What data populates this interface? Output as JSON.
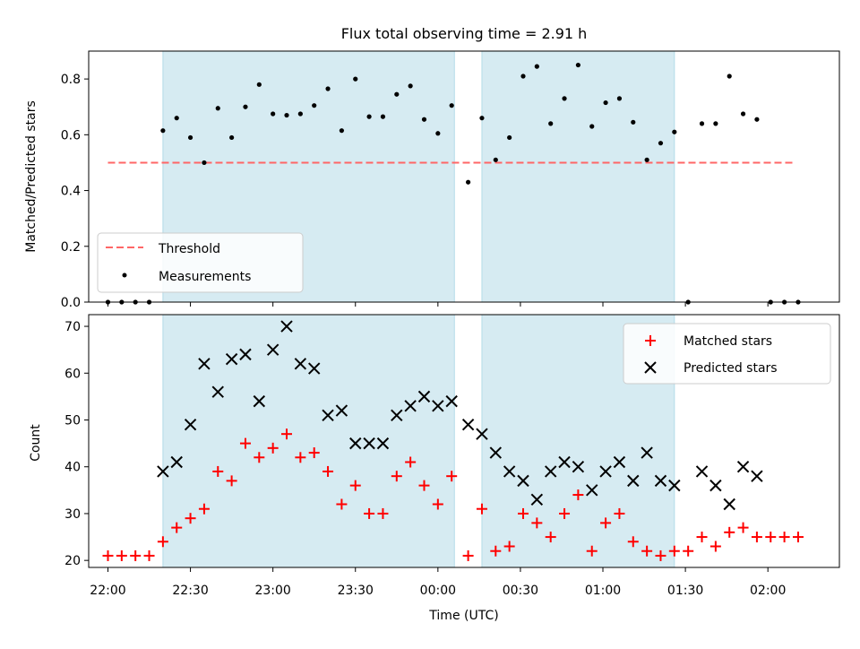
{
  "chart_data": [
    {
      "type": "scatter",
      "title": "Flux total observing time = 2.91 h",
      "xlabel": "",
      "ylabel": "Matched/Predicted stars",
      "xlim": [
        "21:53",
        "02:26"
      ],
      "ylim": [
        0,
        0.9
      ],
      "yticks": [
        0.0,
        0.2,
        0.4,
        0.6,
        0.8
      ],
      "ytick_labels": [
        "0.0",
        "0.2",
        "0.4",
        "0.6",
        "0.8"
      ],
      "shaded_regions": [
        [
          "22:20",
          "00:06"
        ],
        [
          "00:16",
          "01:26"
        ]
      ],
      "shade_color": "#add8e6",
      "legend_position": "lower-left",
      "threshold": {
        "name": "Threshold",
        "value": 0.5,
        "x_start": "22:00",
        "x_end": "02:10",
        "color": "#ff6666",
        "style": "dashed"
      },
      "series": [
        {
          "name": "Measurements",
          "color": "#000000",
          "marker": "dot",
          "x": [
            "22:00",
            "22:05",
            "22:10",
            "22:15",
            "22:20",
            "22:25",
            "22:30",
            "22:35",
            "22:40",
            "22:45",
            "22:50",
            "22:55",
            "23:00",
            "23:05",
            "23:10",
            "23:15",
            "23:20",
            "23:25",
            "23:30",
            "23:35",
            "23:40",
            "23:45",
            "23:50",
            "23:55",
            "00:00",
            "00:05",
            "00:11",
            "00:16",
            "00:21",
            "00:26",
            "00:31",
            "00:36",
            "00:41",
            "00:46",
            "00:51",
            "00:56",
            "01:01",
            "01:06",
            "01:11",
            "01:16",
            "01:21",
            "01:26",
            "01:31",
            "01:36",
            "01:41",
            "01:46",
            "01:51",
            "01:56",
            "02:01",
            "02:06",
            "02:11"
          ],
          "y": [
            0.0,
            0.0,
            0.0,
            0.0,
            0.615,
            0.66,
            0.59,
            0.5,
            0.695,
            0.59,
            0.7,
            0.78,
            0.675,
            0.67,
            0.675,
            0.705,
            0.765,
            0.615,
            0.8,
            0.665,
            0.665,
            0.745,
            0.775,
            0.655,
            0.605,
            0.705,
            0.43,
            0.66,
            0.51,
            0.59,
            0.81,
            0.845,
            0.64,
            0.73,
            0.85,
            0.63,
            0.715,
            0.73,
            0.645,
            0.51,
            0.57,
            0.61,
            0.0,
            0.64,
            0.64,
            0.81,
            0.675,
            0.655,
            0.0,
            0.0,
            0.0
          ]
        }
      ]
    },
    {
      "type": "scatter",
      "title": "",
      "xlabel": "Time (UTC)",
      "ylabel": "Count",
      "xlim": [
        "21:53",
        "02:26"
      ],
      "ylim": [
        18.5,
        72.5
      ],
      "yticks": [
        20,
        30,
        40,
        50,
        60,
        70
      ],
      "ytick_labels": [
        "20",
        "30",
        "40",
        "50",
        "60",
        "70"
      ],
      "xticks": [
        "22:00",
        "22:30",
        "23:00",
        "23:30",
        "00:00",
        "00:30",
        "01:00",
        "01:30",
        "02:00"
      ],
      "xtick_labels": [
        "22:00",
        "22:30",
        "23:00",
        "23:30",
        "00:00",
        "00:30",
        "01:00",
        "01:30",
        "02:00"
      ],
      "shaded_regions": [
        [
          "22:20",
          "00:06"
        ],
        [
          "00:16",
          "01:26"
        ]
      ],
      "shade_color": "#add8e6",
      "legend_position": "top-right",
      "series": [
        {
          "name": "Matched stars",
          "color": "#ff0000",
          "marker": "plus",
          "x": [
            "22:00",
            "22:05",
            "22:10",
            "22:15",
            "22:20",
            "22:25",
            "22:30",
            "22:35",
            "22:40",
            "22:45",
            "22:50",
            "22:55",
            "23:00",
            "23:05",
            "23:10",
            "23:15",
            "23:20",
            "23:25",
            "23:30",
            "23:35",
            "23:40",
            "23:45",
            "23:50",
            "23:55",
            "00:00",
            "00:05",
            "00:11",
            "00:16",
            "00:21",
            "00:26",
            "00:31",
            "00:36",
            "00:41",
            "00:46",
            "00:51",
            "00:56",
            "01:01",
            "01:06",
            "01:11",
            "01:16",
            "01:21",
            "01:26",
            "01:31",
            "01:36",
            "01:41",
            "01:46",
            "01:51",
            "01:56",
            "02:01",
            "02:06",
            "02:11"
          ],
          "y": [
            21,
            21,
            21,
            21,
            24,
            27,
            29,
            31,
            39,
            37,
            45,
            42,
            44,
            47,
            42,
            43,
            39,
            32,
            36,
            30,
            30,
            38,
            41,
            36,
            32,
            38,
            21,
            31,
            22,
            23,
            30,
            28,
            25,
            30,
            34,
            22,
            28,
            30,
            24,
            22,
            21,
            22,
            22,
            25,
            23,
            26,
            27,
            25,
            25,
            25,
            25
          ]
        },
        {
          "name": "Predicted stars",
          "color": "#000000",
          "marker": "x",
          "x": [
            "22:20",
            "22:25",
            "22:30",
            "22:35",
            "22:40",
            "22:45",
            "22:50",
            "22:55",
            "23:00",
            "23:05",
            "23:10",
            "23:15",
            "23:20",
            "23:25",
            "23:30",
            "23:35",
            "23:40",
            "23:45",
            "23:50",
            "23:55",
            "00:00",
            "00:05",
            "00:11",
            "00:16",
            "00:21",
            "00:26",
            "00:31",
            "00:36",
            "00:41",
            "00:46",
            "00:51",
            "00:56",
            "01:01",
            "01:06",
            "01:11",
            "01:16",
            "01:21",
            "01:26",
            "01:36",
            "01:41",
            "01:46",
            "01:51",
            "01:56"
          ],
          "y": [
            39,
            41,
            49,
            62,
            56,
            63,
            64,
            54,
            65,
            70,
            62,
            61,
            51,
            52,
            45,
            45,
            45,
            51,
            53,
            55,
            53,
            54,
            49,
            47,
            43,
            39,
            37,
            33,
            39,
            41,
            40,
            35,
            39,
            41,
            37,
            43,
            37,
            36,
            39,
            36,
            32,
            40,
            38
          ]
        }
      ]
    }
  ]
}
